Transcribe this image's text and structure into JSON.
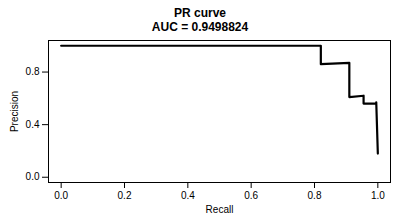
{
  "chart_data": {
    "type": "line",
    "title": "PR curve",
    "subtitle": "AUC = 0.9498824",
    "x_label": "Recall",
    "y_label": "Precision",
    "x": [
      0,
      0.82,
      0.82,
      0.91,
      0.91,
      0.955,
      0.955,
      0.995,
      0.995,
      1.0
    ],
    "values": [
      1.0,
      1.0,
      0.86,
      0.87,
      0.61,
      0.62,
      0.56,
      0.56,
      0.57,
      0.18
    ],
    "color": "#000000",
    "line_style": "solid",
    "grid": false,
    "xlim": [
      -0.04,
      1.04
    ],
    "ylim": [
      -0.04,
      1.04
    ],
    "xticks": [
      {
        "value": 0,
        "label": "0.0"
      },
      {
        "value": 0.2,
        "label": "0.2"
      },
      {
        "value": 0.4,
        "label": "0.4"
      },
      {
        "value": 0.6,
        "label": "0.6"
      },
      {
        "value": 0.8,
        "label": "0.8"
      },
      {
        "value": 1,
        "label": "1.0"
      }
    ],
    "yticks": [
      {
        "value": 0,
        "label": "0.0"
      },
      {
        "value": 0.4,
        "label": "0.4"
      },
      {
        "value": 0.8,
        "label": "0.8"
      }
    ]
  }
}
